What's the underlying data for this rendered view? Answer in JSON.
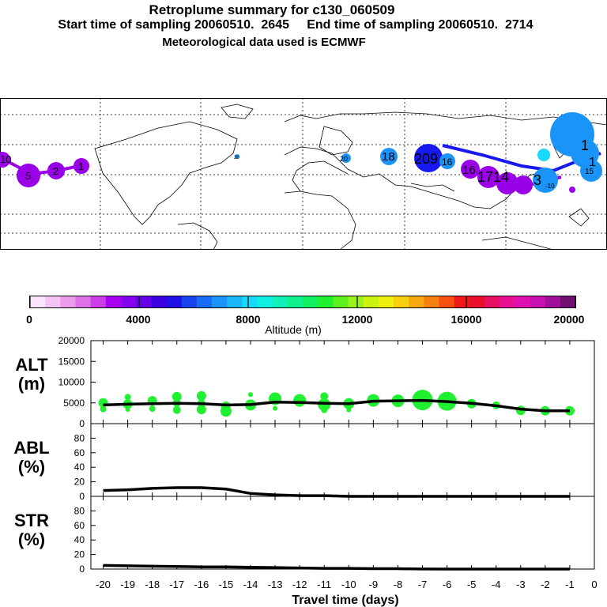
{
  "header": {
    "title": "Retroplume summary for c130_060509",
    "sampling": "Start time of sampling 20060510.  2645     End time of sampling 20060510.  2714",
    "met": "Meteorological data used is ECMWF"
  },
  "colorbar": {
    "label": "Altitude (m)",
    "ticks": [
      "0",
      "4000",
      "8000",
      "12000",
      "16000",
      "20000"
    ],
    "colors": [
      "#fce4fc",
      "#f4c4f4",
      "#ec9cec",
      "#e070e8",
      "#cc3ce8",
      "#a800f0",
      "#8800f0",
      "#6600e8",
      "#3c00e0",
      "#1f10e8",
      "#1a44f0",
      "#1a6cf4",
      "#1a94f8",
      "#1ab8fa",
      "#18d8fc",
      "#10f0e0",
      "#10f0b8",
      "#10f08c",
      "#10f060",
      "#20f030",
      "#60f020",
      "#98f418",
      "#c8f410",
      "#f0f010",
      "#f8d010",
      "#f8a810",
      "#f88010",
      "#f85010",
      "#f01818",
      "#e8102c",
      "#e81060",
      "#e81090",
      "#e010b0",
      "#c810b0",
      "#a01098",
      "#701070"
    ]
  },
  "map": {
    "labels": [
      "10",
      "5",
      "2",
      "1",
      "20",
      "20",
      "18",
      "209",
      "16",
      "16",
      "1714",
      "-10",
      "1",
      "3",
      "15",
      "1"
    ],
    "colors": {
      "purple": "#9a00e8",
      "blue": "#1818f0",
      "sky": "#1a94f8",
      "cyan": "#18d8fc"
    }
  },
  "chart_data": [
    {
      "type": "line",
      "panel": "ALT",
      "ylabel": "ALT\n(m)",
      "ylabel_lines": [
        "ALT",
        "(m)"
      ],
      "ylim": [
        0,
        20000
      ],
      "yticks": [
        0,
        5000,
        10000,
        15000,
        20000
      ],
      "x": [
        -20,
        -19,
        -18,
        -17,
        -16,
        -15,
        -14,
        -13,
        -12,
        -11,
        -10,
        -9,
        -8,
        -7,
        -6,
        -5,
        -4,
        -3,
        -2,
        -1
      ],
      "series": [
        {
          "name": "mean altitude",
          "values": [
            4500,
            4700,
            4800,
            4900,
            4800,
            4500,
            4600,
            5200,
            5100,
            4900,
            4800,
            5400,
            5500,
            5600,
            5300,
            4900,
            4300,
            3500,
            3100,
            3100
          ]
        }
      ],
      "scatter_points": [
        {
          "x": -20,
          "y": 5000,
          "r": 6
        },
        {
          "x": -20,
          "y": 3500,
          "r": 4
        },
        {
          "x": -19,
          "y": 4700,
          "r": 6
        },
        {
          "x": -19,
          "y": 6400,
          "r": 4
        },
        {
          "x": -19,
          "y": 3400,
          "r": 3
        },
        {
          "x": -18,
          "y": 5500,
          "r": 6
        },
        {
          "x": -18,
          "y": 3600,
          "r": 4
        },
        {
          "x": -17,
          "y": 6500,
          "r": 6
        },
        {
          "x": -17,
          "y": 5000,
          "r": 5
        },
        {
          "x": -17,
          "y": 3300,
          "r": 5
        },
        {
          "x": -16,
          "y": 6700,
          "r": 6
        },
        {
          "x": -16,
          "y": 4900,
          "r": 5
        },
        {
          "x": -16,
          "y": 3400,
          "r": 6
        },
        {
          "x": -15,
          "y": 4200,
          "r": 6
        },
        {
          "x": -15,
          "y": 3000,
          "r": 7
        },
        {
          "x": -14,
          "y": 7000,
          "r": 3
        },
        {
          "x": -14,
          "y": 4500,
          "r": 7
        },
        {
          "x": -13,
          "y": 6000,
          "r": 8
        },
        {
          "x": -13,
          "y": 3700,
          "r": 3
        },
        {
          "x": -12,
          "y": 5600,
          "r": 8
        },
        {
          "x": -11,
          "y": 6600,
          "r": 5
        },
        {
          "x": -11,
          "y": 4600,
          "r": 8
        },
        {
          "x": -11,
          "y": 3300,
          "r": 4
        },
        {
          "x": -10,
          "y": 4800,
          "r": 7
        },
        {
          "x": -10,
          "y": 3300,
          "r": 3
        },
        {
          "x": -9,
          "y": 5600,
          "r": 8
        },
        {
          "x": -8,
          "y": 5500,
          "r": 8
        },
        {
          "x": -7,
          "y": 5700,
          "r": 13
        },
        {
          "x": -6,
          "y": 5400,
          "r": 12
        },
        {
          "x": -5,
          "y": 4800,
          "r": 6
        },
        {
          "x": -4,
          "y": 4400,
          "r": 5
        },
        {
          "x": -3,
          "y": 3200,
          "r": 6
        },
        {
          "x": -2,
          "y": 3100,
          "r": 6
        },
        {
          "x": -1,
          "y": 3100,
          "r": 6
        }
      ]
    },
    {
      "type": "line",
      "panel": "ABL",
      "ylabel": "ABL\n(%)",
      "ylabel_lines": [
        "ABL",
        "(%)"
      ],
      "ylim": [
        0,
        100
      ],
      "yticks": [
        0,
        20,
        40,
        60,
        80
      ],
      "x": [
        -20,
        -19,
        -18,
        -17,
        -16,
        -15,
        -14,
        -13,
        -12,
        -11,
        -10,
        -9,
        -8,
        -7,
        -6,
        -5,
        -4,
        -3,
        -2,
        -1
      ],
      "series": [
        {
          "name": "ABL fraction",
          "values": [
            8,
            9,
            11,
            12,
            12,
            10,
            4,
            2,
            1,
            1,
            0,
            0,
            0,
            0,
            0,
            0,
            0,
            0,
            0,
            0
          ]
        }
      ]
    },
    {
      "type": "line",
      "panel": "STR",
      "ylabel": "STR\n(%)",
      "ylabel_lines": [
        "STR",
        "(%)"
      ],
      "ylim": [
        0,
        100
      ],
      "yticks": [
        0,
        20,
        40,
        60,
        80
      ],
      "x": [
        -20,
        -19,
        -18,
        -17,
        -16,
        -15,
        -14,
        -13,
        -12,
        -11,
        -10,
        -9,
        -8,
        -7,
        -6,
        -5,
        -4,
        -3,
        -2,
        -1
      ],
      "series": [
        {
          "name": "stratospheric fraction",
          "values": [
            5,
            4.5,
            4,
            3.5,
            3,
            3,
            2.5,
            2,
            1.5,
            1,
            1,
            0.5,
            0.5,
            0.2,
            0,
            0,
            0,
            0,
            0,
            0
          ]
        }
      ]
    }
  ],
  "xaxis": {
    "ticks": [
      -20,
      -19,
      -18,
      -17,
      -16,
      -15,
      -14,
      -13,
      -12,
      -11,
      -10,
      -9,
      -8,
      -7,
      -6,
      -5,
      -4,
      -3,
      -2,
      -1,
      0
    ],
    "label": "Travel time (days)"
  }
}
